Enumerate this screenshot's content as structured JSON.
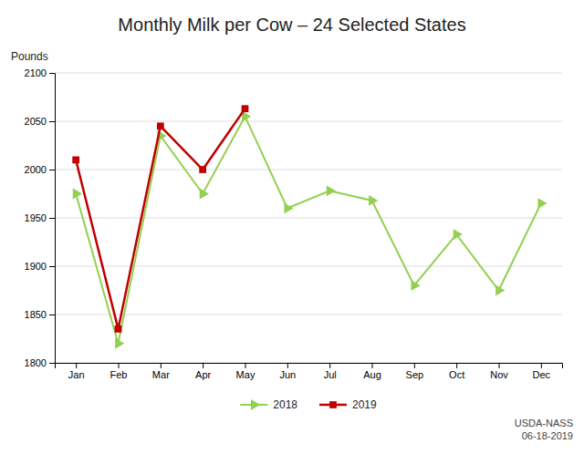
{
  "chart_data": {
    "type": "line",
    "title": "Monthly Milk per Cow – 24 Selected States",
    "ylabel": "Pounds",
    "annotations": [
      "USDA-NASS",
      "06-18-2019"
    ],
    "categories": [
      "Jan",
      "Feb",
      "Mar",
      "Apr",
      "May",
      "Jun",
      "Jul",
      "Aug",
      "Sep",
      "Oct",
      "Nov",
      "Dec"
    ],
    "series": [
      {
        "name": "2018",
        "color": "#92D050",
        "marker": "triangle-right",
        "values": [
          1975,
          1820,
          2035,
          1975,
          2055,
          1960,
          1978,
          1968,
          1880,
          1933,
          1875,
          1965
        ]
      },
      {
        "name": "2019",
        "color": "#C00000",
        "marker": "square",
        "values": [
          2010,
          1835,
          2045,
          2000,
          2063,
          null,
          null,
          null,
          null,
          null,
          null,
          null
        ]
      }
    ],
    "ylim": [
      1800,
      2100
    ],
    "yticks": [
      1800,
      1850,
      1900,
      1950,
      2000,
      2050,
      2100
    ],
    "grid": true,
    "legend": "bottom"
  }
}
